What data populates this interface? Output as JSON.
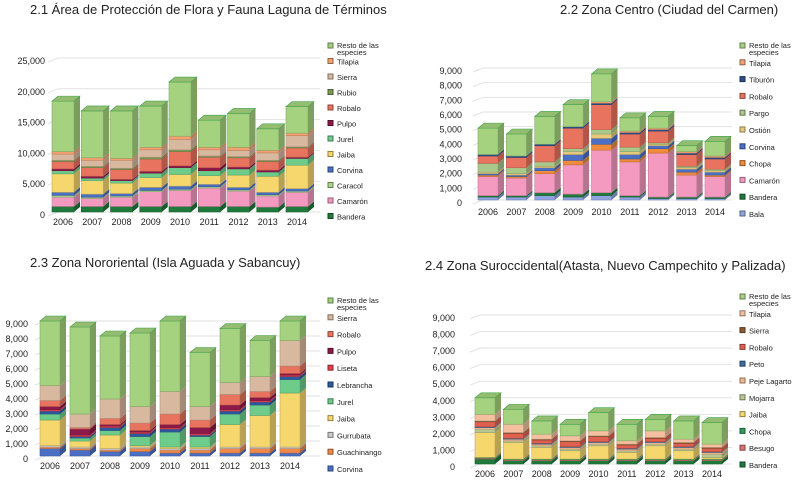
{
  "chart_data": [
    {
      "type": "bar",
      "stacked": true,
      "title": "2.1 Área de Protección de Flora y Fauna Laguna de Términos",
      "categories": [
        "2006",
        "2007",
        "2008",
        "2009",
        "2010",
        "2011",
        "2012",
        "2013",
        "2014"
      ],
      "ylim": [
        0,
        25000
      ],
      "yticks": [
        "0",
        "5,000",
        "10,000",
        "15,000",
        "20,000",
        "25,000"
      ],
      "grid": true,
      "legend": "right",
      "series": [
        {
          "name": "Bandera",
          "color": "#1f7a3c",
          "values": [
            900,
            900,
            900,
            900,
            900,
            900,
            900,
            800,
            900
          ]
        },
        {
          "name": "Camarón",
          "color": "#f49ac1",
          "values": [
            1500,
            1300,
            1500,
            2400,
            2600,
            3000,
            2500,
            1800,
            2300
          ]
        },
        {
          "name": "Caracol",
          "color": "#a9d48a",
          "values": [
            300,
            200,
            200,
            200,
            200,
            200,
            200,
            200,
            200
          ]
        },
        {
          "name": "Corvina",
          "color": "#4a6fc4",
          "values": [
            500,
            500,
            400,
            500,
            500,
            400,
            400,
            400,
            400
          ]
        },
        {
          "name": "Jaiba",
          "color": "#f5d76e",
          "values": [
            3000,
            2200,
            1700,
            1600,
            1900,
            1400,
            2000,
            2600,
            3800
          ]
        },
        {
          "name": "Jurel",
          "color": "#6dcc8a",
          "values": [
            500,
            400,
            400,
            700,
            1100,
            800,
            1000,
            700,
            1100
          ]
        },
        {
          "name": "Pulpo",
          "color": "#8b1a4a",
          "values": [
            300,
            300,
            200,
            300,
            300,
            500,
            300,
            300,
            200
          ]
        },
        {
          "name": "Robalo",
          "color": "#e8735e",
          "values": [
            1200,
            1400,
            1600,
            2000,
            2300,
            1700,
            1500,
            1400,
            1500
          ]
        },
        {
          "name": "Rubio",
          "color": "#7f9a55",
          "values": [
            200,
            200,
            200,
            300,
            300,
            200,
            200,
            200,
            200
          ]
        },
        {
          "name": "Sierra",
          "color": "#d9b8a0",
          "values": [
            1000,
            1000,
            1300,
            1200,
            1700,
            1000,
            1000,
            1200,
            1800
          ]
        },
        {
          "name": "Tilapia",
          "color": "#f4a070",
          "values": [
            400,
            400,
            300,
            400,
            500,
            400,
            500,
            400,
            400
          ]
        },
        {
          "name": "Resto de las especies",
          "color": "#a5d27f",
          "values": [
            8200,
            7600,
            7700,
            6700,
            8800,
            4400,
            5500,
            3500,
            4300
          ]
        }
      ]
    },
    {
      "type": "bar",
      "stacked": true,
      "title": "2.2 Zona Centro (Ciudad del Carmen)",
      "categories": [
        "2006",
        "2007",
        "2008",
        "2009",
        "2010",
        "2011",
        "2012",
        "2013",
        "2014"
      ],
      "ylim": [
        0,
        9000
      ],
      "yticks": [
        "0",
        "1,000",
        "2,000",
        "3,000",
        "4,000",
        "5,000",
        "6,000",
        "7,000",
        "8,000",
        "9,000"
      ],
      "grid": true,
      "legend": "right",
      "series": [
        {
          "name": "Bala",
          "color": "#8fa3e0",
          "values": [
            200,
            200,
            300,
            200,
            300,
            200,
            100,
            100,
            100
          ]
        },
        {
          "name": "Bandera",
          "color": "#1f7a3c",
          "values": [
            100,
            100,
            200,
            200,
            200,
            100,
            100,
            100,
            100
          ]
        },
        {
          "name": "Camarón",
          "color": "#f49ac1",
          "values": [
            1300,
            1200,
            1300,
            2000,
            2900,
            2300,
            3000,
            1500,
            1400
          ]
        },
        {
          "name": "Chopa",
          "color": "#f08a3c",
          "values": [
            100,
            100,
            200,
            300,
            400,
            200,
            300,
            200,
            100
          ]
        },
        {
          "name": "Corvina",
          "color": "#4a6fc4",
          "values": [
            100,
            100,
            200,
            400,
            400,
            300,
            200,
            200,
            200
          ]
        },
        {
          "name": "Ostión",
          "color": "#e8c87a",
          "values": [
            100,
            100,
            100,
            200,
            300,
            200,
            100,
            100,
            100
          ]
        },
        {
          "name": "Pargo",
          "color": "#a9c98a",
          "values": [
            600,
            400,
            300,
            200,
            300,
            300,
            100,
            100,
            100
          ]
        },
        {
          "name": "Robalo",
          "color": "#e8735e",
          "values": [
            500,
            700,
            1100,
            1400,
            1700,
            900,
            800,
            800,
            700
          ]
        },
        {
          "name": "Tiburón",
          "color": "#2c4f8c",
          "values": [
            100,
            100,
            100,
            100,
            100,
            100,
            100,
            100,
            100
          ]
        },
        {
          "name": "Tilapia",
          "color": "#f4a070",
          "values": [
            0,
            0,
            0,
            0,
            100,
            100,
            100,
            100,
            100
          ]
        },
        {
          "name": "Resto de las especies",
          "color": "#a5d27f",
          "values": [
            1800,
            1500,
            1900,
            1500,
            1900,
            900,
            800,
            400,
            1000
          ]
        }
      ]
    },
    {
      "type": "bar",
      "stacked": true,
      "title": "2.3 Zona Nororiental (Isla Aguada y Sabancuy)",
      "categories": [
        "2006",
        "2007",
        "2008",
        "2009",
        "2010",
        "2011",
        "2012",
        "2013",
        "2014"
      ],
      "ylim": [
        0,
        9000
      ],
      "yticks": [
        "0",
        "1,000",
        "2,000",
        "3,000",
        "4,000",
        "5,000",
        "6,000",
        "7,000",
        "8,000",
        "9,000"
      ],
      "grid": true,
      "legend": "right",
      "series": [
        {
          "name": "Corvina",
          "color": "#4a6fc4",
          "values": [
            500,
            400,
            300,
            300,
            200,
            200,
            200,
            200,
            200
          ]
        },
        {
          "name": "Guachinango",
          "color": "#f0884a",
          "values": [
            100,
            100,
            100,
            200,
            200,
            200,
            300,
            300,
            300
          ]
        },
        {
          "name": "Gurrubata",
          "color": "#c8c8c8",
          "values": [
            100,
            100,
            100,
            100,
            100,
            100,
            100,
            100,
            100
          ]
        },
        {
          "name": "Jaiba",
          "color": "#f5d76e",
          "values": [
            1700,
            400,
            900,
            100,
            100,
            100,
            1500,
            2100,
            3600
          ]
        },
        {
          "name": "Jurel",
          "color": "#6dcc8a",
          "values": [
            400,
            200,
            300,
            600,
            1000,
            700,
            700,
            700,
            900
          ]
        },
        {
          "name": "Lebrancha",
          "color": "#2c5aa0",
          "values": [
            200,
            100,
            200,
            200,
            200,
            100,
            200,
            200,
            200
          ]
        },
        {
          "name": "Liseta",
          "color": "#e04050",
          "values": [
            100,
            100,
            100,
            100,
            100,
            100,
            100,
            100,
            100
          ]
        },
        {
          "name": "Pulpo",
          "color": "#8b1a4a",
          "values": [
            200,
            400,
            100,
            100,
            200,
            400,
            300,
            200,
            100
          ]
        },
        {
          "name": "Robalo",
          "color": "#e8735e",
          "values": [
            400,
            100,
            400,
            500,
            700,
            500,
            700,
            400,
            500
          ]
        },
        {
          "name": "Sierra",
          "color": "#d9b8a0",
          "values": [
            1000,
            900,
            1300,
            1100,
            1500,
            900,
            800,
            1000,
            1700
          ]
        },
        {
          "name": "Resto de las especies",
          "color": "#a5d27f",
          "values": [
            4300,
            5800,
            4200,
            4900,
            4700,
            3600,
            3600,
            2400,
            1300
          ]
        }
      ]
    },
    {
      "type": "bar",
      "stacked": true,
      "title": "2.4 Zona Suroccidental(Atasta, Nuevo Campechito y Palizada)",
      "categories": [
        "2006",
        "2007",
        "2008",
        "2009",
        "2010",
        "2011",
        "2012",
        "2013",
        "2014"
      ],
      "ylim": [
        0,
        9000
      ],
      "yticks": [
        "0",
        "1,000",
        "2,000",
        "3,000",
        "4,000",
        "5,000",
        "6,000",
        "7,000",
        "8,000",
        "9,000"
      ],
      "grid": true,
      "legend": "right",
      "series": [
        {
          "name": "Bandera",
          "color": "#1f7a3c",
          "values": [
            300,
            200,
            200,
            200,
            200,
            200,
            200,
            200,
            200
          ]
        },
        {
          "name": "Besugo",
          "color": "#e07070",
          "values": [
            50,
            50,
            50,
            50,
            50,
            50,
            50,
            50,
            50
          ]
        },
        {
          "name": "Chopa",
          "color": "#2f9a5a",
          "values": [
            50,
            50,
            50,
            50,
            50,
            50,
            50,
            50,
            50
          ]
        },
        {
          "name": "Jaiba",
          "color": "#f5d76e",
          "values": [
            1500,
            1000,
            700,
            500,
            800,
            400,
            800,
            500,
            100
          ]
        },
        {
          "name": "Mojarra",
          "color": "#b8c890",
          "values": [
            200,
            100,
            100,
            100,
            100,
            100,
            100,
            100,
            200
          ]
        },
        {
          "name": "Peje Lagarto",
          "color": "#f4b890",
          "values": [
            100,
            100,
            100,
            100,
            100,
            100,
            100,
            100,
            100
          ]
        },
        {
          "name": "Peto",
          "color": "#3b6fa0",
          "values": [
            50,
            50,
            50,
            50,
            50,
            50,
            50,
            50,
            50
          ]
        },
        {
          "name": "Robalo",
          "color": "#e06050",
          "values": [
            300,
            300,
            200,
            300,
            300,
            200,
            200,
            200,
            200
          ]
        },
        {
          "name": "Sierra",
          "color": "#8a5a30",
          "values": [
            50,
            50,
            50,
            50,
            50,
            50,
            50,
            50,
            50
          ]
        },
        {
          "name": "Tilapia",
          "color": "#f4c0a0",
          "values": [
            400,
            500,
            300,
            300,
            300,
            200,
            400,
            200,
            200
          ]
        },
        {
          "name": "Resto de las especies",
          "color": "#a5d27f",
          "values": [
            1000,
            900,
            800,
            700,
            1100,
            1000,
            700,
            1100,
            1300
          ]
        }
      ]
    }
  ]
}
